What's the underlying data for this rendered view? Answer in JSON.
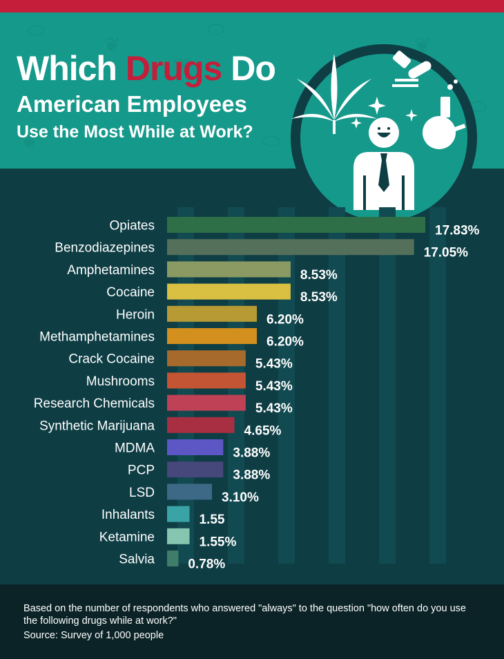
{
  "header": {
    "title_word1": "Which",
    "title_highlight": "Drugs",
    "title_word3": "Do",
    "title_line2": "American Employees",
    "title_line3": "Use the Most While at Work?"
  },
  "illustration": {
    "icons": [
      "cannabis-leaf-icon",
      "person-icon",
      "pills-icon",
      "flask-icon",
      "sparkle-icon"
    ]
  },
  "colors": {
    "brand_red": "#c41e3a",
    "header_teal": "#15998a",
    "background": "#0e3d44",
    "footer": "#0b2327"
  },
  "chart_data": {
    "type": "bar",
    "orientation": "horizontal",
    "categories": [
      "Opiates",
      "Benzodiazepines",
      "Amphetamines",
      "Cocaine",
      "Heroin",
      "Methamphetamines",
      "Crack Cocaine",
      "Mushrooms",
      "Research Chemicals",
      "Synthetic Marijuana",
      "MDMA",
      "PCP",
      "LSD",
      "Inhalants",
      "Ketamine",
      "Salvia"
    ],
    "values": [
      17.83,
      17.05,
      8.53,
      8.53,
      6.2,
      6.2,
      5.43,
      5.43,
      5.43,
      4.65,
      3.88,
      3.88,
      3.1,
      1.55,
      1.55,
      0.78
    ],
    "labels": [
      "17.83%",
      "17.05%",
      "8.53%",
      "8.53%",
      "6.20%",
      "6.20%",
      "5.43%",
      "5.43%",
      "5.43%",
      "4.65%",
      "3.88%",
      "3.88%",
      "3.10%",
      "1.55",
      "1.55%",
      "0.78%"
    ],
    "colors": [
      "#2e6f47",
      "#55705a",
      "#8b9a62",
      "#d9bf42",
      "#b89a35",
      "#d4901e",
      "#a66a2c",
      "#c45534",
      "#bf4155",
      "#a82e42",
      "#5c57c4",
      "#46477a",
      "#3d6987",
      "#3aa3a6",
      "#86c6b0",
      "#3f7c6a"
    ],
    "xlim": [
      0,
      20
    ],
    "grid": true
  },
  "footer": {
    "note": "Based on the number of respondents who answered \"always\" to the question \"how often do you use the following drugs while at work?\"",
    "source": "Source: Survey of 1,000 people"
  }
}
